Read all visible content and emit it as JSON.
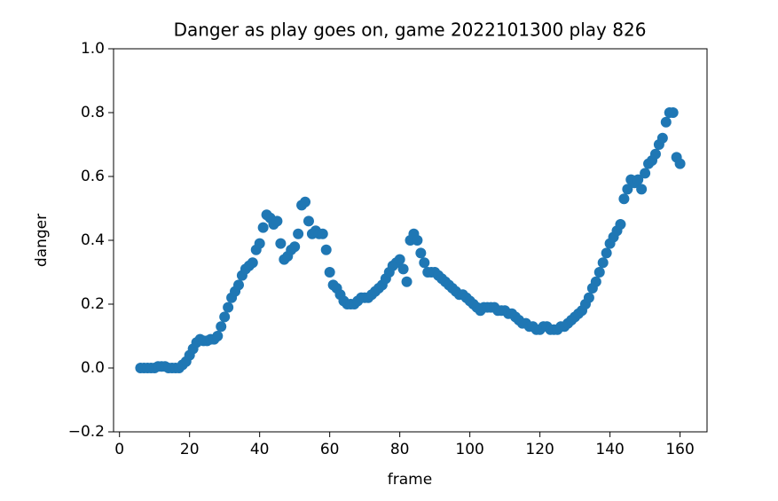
{
  "chart_data": {
    "type": "scatter",
    "title": "Danger as play goes on, game 2022101300 play 826",
    "xlabel": "frame",
    "ylabel": "danger",
    "color": "#1f77b4",
    "x": [
      6,
      7,
      8,
      9,
      10,
      11,
      12,
      13,
      14,
      15,
      16,
      17,
      18,
      19,
      20,
      21,
      22,
      23,
      24,
      25,
      26,
      27,
      28,
      29,
      30,
      31,
      32,
      33,
      34,
      35,
      36,
      37,
      38,
      39,
      40,
      41,
      42,
      43,
      44,
      45,
      46,
      47,
      48,
      49,
      50,
      51,
      52,
      53,
      54,
      55,
      56,
      57,
      58,
      59,
      60,
      61,
      62,
      63,
      64,
      65,
      66,
      67,
      68,
      69,
      70,
      71,
      72,
      73,
      74,
      75,
      76,
      77,
      78,
      79,
      80,
      81,
      82,
      83,
      84,
      85,
      86,
      87,
      88,
      89,
      90,
      91,
      92,
      93,
      94,
      95,
      96,
      97,
      98,
      99,
      100,
      101,
      102,
      103,
      104,
      105,
      106,
      107,
      108,
      109,
      110,
      111,
      112,
      113,
      114,
      115,
      116,
      117,
      118,
      119,
      120,
      121,
      122,
      123,
      124,
      125,
      126,
      127,
      128,
      129,
      130,
      131,
      132,
      133,
      134,
      135,
      136,
      137,
      138,
      139,
      140,
      141,
      142,
      143,
      144,
      145,
      146,
      147,
      148,
      149,
      150,
      151,
      152,
      153,
      154,
      155,
      156,
      157,
      158,
      159,
      160
    ],
    "values": [
      0,
      0,
      0,
      0,
      0,
      0.005,
      0.005,
      0.005,
      0,
      0,
      0,
      0,
      0.01,
      0.02,
      0.04,
      0.06,
      0.08,
      0.09,
      0.085,
      0.085,
      0.09,
      0.09,
      0.1,
      0.13,
      0.16,
      0.19,
      0.22,
      0.24,
      0.26,
      0.29,
      0.31,
      0.32,
      0.33,
      0.37,
      0.39,
      0.44,
      0.48,
      0.47,
      0.45,
      0.46,
      0.39,
      0.34,
      0.35,
      0.37,
      0.38,
      0.42,
      0.51,
      0.52,
      0.46,
      0.42,
      0.43,
      0.42,
      0.42,
      0.37,
      0.3,
      0.26,
      0.25,
      0.23,
      0.21,
      0.2,
      0.2,
      0.2,
      0.21,
      0.22,
      0.22,
      0.22,
      0.23,
      0.24,
      0.25,
      0.26,
      0.28,
      0.3,
      0.32,
      0.33,
      0.34,
      0.31,
      0.27,
      0.4,
      0.42,
      0.4,
      0.36,
      0.33,
      0.3,
      0.3,
      0.3,
      0.29,
      0.28,
      0.27,
      0.26,
      0.25,
      0.24,
      0.23,
      0.23,
      0.22,
      0.21,
      0.2,
      0.19,
      0.18,
      0.19,
      0.19,
      0.19,
      0.19,
      0.18,
      0.18,
      0.18,
      0.17,
      0.17,
      0.16,
      0.15,
      0.14,
      0.14,
      0.13,
      0.13,
      0.12,
      0.12,
      0.13,
      0.13,
      0.12,
      0.12,
      0.12,
      0.13,
      0.13,
      0.14,
      0.15,
      0.16,
      0.17,
      0.18,
      0.2,
      0.22,
      0.25,
      0.27,
      0.3,
      0.33,
      0.36,
      0.39,
      0.41,
      0.43,
      0.45,
      0.53,
      0.56,
      0.59,
      0.58,
      0.59,
      0.56,
      0.61,
      0.64,
      0.65,
      0.67,
      0.7,
      0.72,
      0.77,
      0.8,
      0.8,
      0.66,
      0.64
    ],
    "xlim": [
      -1.7,
      167.7
    ],
    "xticks": [
      0,
      20,
      40,
      60,
      80,
      100,
      120,
      140,
      160
    ],
    "ylim": [
      -0.2,
      1.0
    ],
    "yticks": [
      {
        "value": -0.2,
        "label": "−0.2"
      },
      {
        "value": 0,
        "label": "0.0"
      },
      0.2,
      0.4,
      0.6,
      0.8,
      {
        "value": 1.0,
        "label": "1.0"
      }
    ]
  }
}
